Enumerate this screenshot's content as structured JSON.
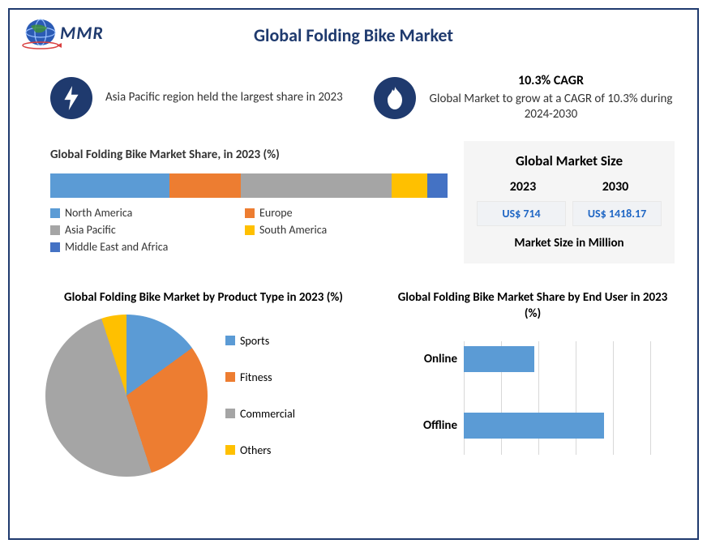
{
  "title": "Global Folding Bike Market",
  "logo_text": "MMR",
  "highlights": {
    "left": {
      "text": "Asia Pacific region held the largest share in 2023"
    },
    "right": {
      "title": "10.3% CAGR",
      "text": "Global Market to grow at a CAGR of 10.3% during 2024-2030"
    }
  },
  "share_chart": {
    "title": "Global Folding Bike Market Share, in 2023 (%)",
    "type": "stacked-bar",
    "segments": [
      {
        "label": "North America",
        "value": 30,
        "color": "#5b9bd5"
      },
      {
        "label": "Europe",
        "value": 18,
        "color": "#ed7d31"
      },
      {
        "label": "Asia Pacific",
        "value": 38,
        "color": "#a5a5a5"
      },
      {
        "label": "South America",
        "value": 9,
        "color": "#ffc000"
      },
      {
        "label": "Middle East and Africa",
        "value": 5,
        "color": "#4472c4"
      }
    ]
  },
  "market_size": {
    "panel_title": "Global Market Size",
    "years": [
      "2023",
      "2030"
    ],
    "values": [
      "US$ 714",
      "US$ 1418.17"
    ],
    "unit": "Market Size in Million",
    "panel_bg": "#f5f5f5",
    "value_color": "#1f66c4"
  },
  "pie_chart": {
    "title": "Global Folding Bike Market by Product Type in 2023 (%)",
    "type": "pie",
    "slices": [
      {
        "label": "Sports",
        "value": 15,
        "color": "#5b9bd5"
      },
      {
        "label": "Fitness",
        "value": 30,
        "color": "#ed7d31"
      },
      {
        "label": "Commercial",
        "value": 50,
        "color": "#a5a5a5"
      },
      {
        "label": "Others",
        "value": 5,
        "color": "#ffc000"
      }
    ]
  },
  "hbar_chart": {
    "title": "Global Folding Bike Market Share by End User in 2023 (%)",
    "type": "bar-horizontal",
    "bars": [
      {
        "label": "Online",
        "value": 38,
        "color": "#5b9bd5"
      },
      {
        "label": "Offline",
        "value": 75,
        "color": "#5b9bd5"
      }
    ],
    "xmax": 100,
    "grid_ticks": [
      0,
      20,
      40,
      60,
      80,
      100
    ],
    "grid_color": "#d8d8d8"
  },
  "brand_color": "#1f3a6e",
  "background": "#ffffff"
}
